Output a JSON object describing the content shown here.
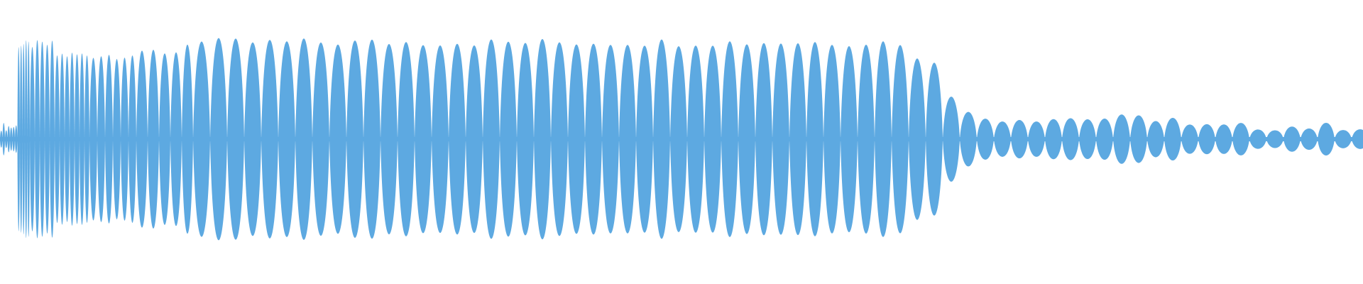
{
  "chart_data": {
    "type": "area",
    "title": "",
    "xlabel": "",
    "ylabel": "",
    "grid": false,
    "legend": "none",
    "color": "#5DA9E1",
    "ylim": [
      -1,
      1
    ],
    "segments": [
      {
        "start": 0.0,
        "end": 0.012,
        "amplitude": 0.12
      },
      {
        "start": 0.012,
        "end": 0.04,
        "amplitude": 0.9
      },
      {
        "start": 0.04,
        "end": 0.108,
        "amplitude": 0.8
      },
      {
        "start": 0.108,
        "end": 0.13,
        "amplitude": 0.83
      },
      {
        "start": 0.13,
        "end": 0.672,
        "amplitude": 0.92
      },
      {
        "start": 0.672,
        "end": 0.688,
        "amplitude": 0.75
      },
      {
        "start": 0.688,
        "end": 0.702,
        "amplitude": 0.44
      },
      {
        "start": 0.702,
        "end": 0.712,
        "amplitude": 0.24
      },
      {
        "start": 0.712,
        "end": 0.87,
        "amplitude": 0.2
      },
      {
        "start": 0.87,
        "end": 1.0,
        "amplitude": 0.12
      }
    ]
  }
}
